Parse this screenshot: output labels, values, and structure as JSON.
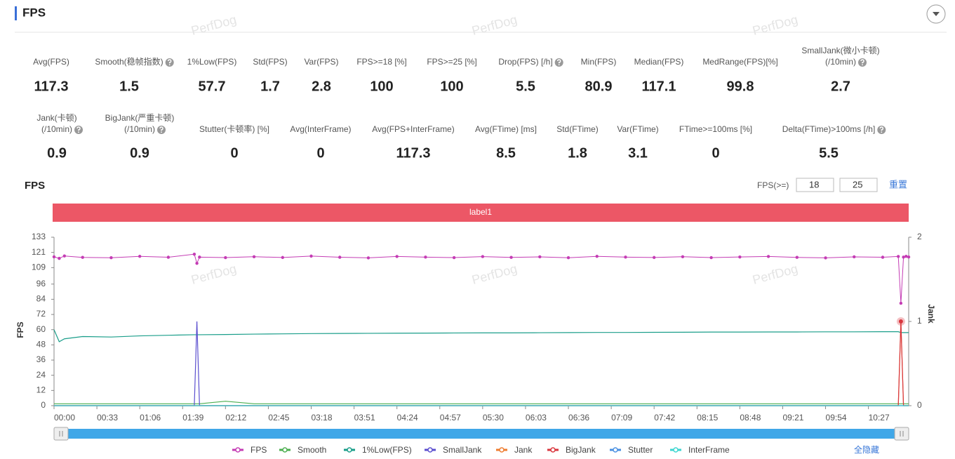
{
  "header": {
    "title": "FPS"
  },
  "watermark": "PerfDog",
  "stats": [
    [
      {
        "label": [
          "Avg(FPS)"
        ],
        "value": 117.3
      },
      {
        "label": [
          "Smooth(稳帧指数)"
        ],
        "value": 1.5,
        "help": true
      },
      {
        "label": [
          "1%Low(FPS)"
        ],
        "value": 57.7
      },
      {
        "label": [
          "Std(FPS)"
        ],
        "value": 1.7
      },
      {
        "label": [
          "Var(FPS)"
        ],
        "value": 2.8
      },
      {
        "label": [
          "FPS>=18 [%]"
        ],
        "value": 100
      },
      {
        "label": [
          "FPS>=25 [%]"
        ],
        "value": 100
      },
      {
        "label": [
          "Drop(FPS) [/h]"
        ],
        "value": 5.5,
        "help": true
      },
      {
        "label": [
          "Min(FPS)"
        ],
        "value": 80.9
      },
      {
        "label": [
          "Median(FPS)"
        ],
        "value": 117.1
      },
      {
        "label": [
          "MedRange(FPS)[%]"
        ],
        "value": 99.8
      },
      {
        "label": [
          "SmallJank(微小卡顿)",
          "(/10min)"
        ],
        "value": 2.7,
        "help": true
      }
    ],
    [
      {
        "label": [
          "Jank(卡顿)",
          "(/10min)"
        ],
        "value": 0.9,
        "help": true
      },
      {
        "label": [
          "BigJank(严重卡顿)",
          "(/10min)"
        ],
        "value": 0.9,
        "help": true
      },
      {
        "label": [
          "Stutter(卡顿率) [%]"
        ],
        "value": 0
      },
      {
        "label": [
          "Avg(InterFrame)"
        ],
        "value": 0
      },
      {
        "label": [
          "Avg(FPS+InterFrame)"
        ],
        "value": 117.3
      },
      {
        "label": [
          "Avg(FTime) [ms]"
        ],
        "value": 8.5
      },
      {
        "label": [
          "Std(FTime)"
        ],
        "value": 1.8
      },
      {
        "label": [
          "Var(FTime)"
        ],
        "value": 3.1
      },
      {
        "label": [
          "FTime>=100ms [%]"
        ],
        "value": 0
      },
      {
        "label": [
          "Delta(FTime)>100ms [/h]"
        ],
        "value": 5.5,
        "help": true
      }
    ]
  ],
  "controls": {
    "label": "FPS(>=)",
    "inputs": [
      18,
      25
    ],
    "reset": "重置",
    "hide_all": "全隐藏"
  },
  "chart_data": {
    "type": "line",
    "title": "FPS",
    "band_label": "label1",
    "band_color": "#ec5766",
    "ylabel": "FPS",
    "y2label": "Jank",
    "x": [
      0,
      4,
      8,
      22,
      44,
      66,
      88,
      108,
      110,
      112,
      132,
      154,
      176,
      198,
      220,
      242,
      264,
      286,
      308,
      330,
      352,
      374,
      396,
      418,
      440,
      462,
      484,
      506,
      528,
      550,
      572,
      594,
      616,
      638,
      650,
      652,
      654,
      656,
      658
    ],
    "xlim": [
      0,
      658
    ],
    "xticks": [
      {
        "value": 0,
        "label": "00:00"
      },
      {
        "value": 33,
        "label": "00:33"
      },
      {
        "value": 66,
        "label": "01:06"
      },
      {
        "value": 99,
        "label": "01:39"
      },
      {
        "value": 132,
        "label": "02:12"
      },
      {
        "value": 165,
        "label": "02:45"
      },
      {
        "value": 198,
        "label": "03:18"
      },
      {
        "value": 231,
        "label": "03:51"
      },
      {
        "value": 264,
        "label": "04:24"
      },
      {
        "value": 297,
        "label": "04:57"
      },
      {
        "value": 330,
        "label": "05:30"
      },
      {
        "value": 363,
        "label": "06:03"
      },
      {
        "value": 396,
        "label": "06:36"
      },
      {
        "value": 429,
        "label": "07:09"
      },
      {
        "value": 462,
        "label": "07:42"
      },
      {
        "value": 495,
        "label": "08:15"
      },
      {
        "value": 528,
        "label": "08:48"
      },
      {
        "value": 561,
        "label": "09:21"
      },
      {
        "value": 594,
        "label": "09:54"
      },
      {
        "value": 627,
        "label": "10:27"
      }
    ],
    "ylim": [
      0,
      133
    ],
    "yticks": [
      0,
      12,
      24,
      36,
      48,
      60,
      72,
      84,
      96,
      109,
      121,
      133
    ],
    "y2lim": [
      0,
      2
    ],
    "y2ticks": [
      0,
      1,
      2
    ],
    "series": [
      {
        "name": "FPS",
        "color": "#c43cb4",
        "markers": true,
        "values": [
          117.5,
          116.3,
          118.2,
          117.1,
          116.8,
          117.9,
          117.2,
          119.6,
          112.4,
          117.3,
          116.9,
          117.6,
          117.0,
          118.1,
          117.2,
          116.7,
          117.8,
          117.3,
          116.9,
          117.7,
          117.1,
          117.5,
          116.8,
          117.9,
          117.3,
          117.0,
          117.6,
          116.9,
          117.4,
          117.8,
          117.1,
          116.7,
          117.5,
          117.2,
          117.8,
          80.9,
          117.3,
          117.9,
          117.4
        ]
      },
      {
        "name": "Smooth",
        "color": "#4caf50",
        "values": [
          1.5,
          1.5,
          1.5,
          1.5,
          1.5,
          1.5,
          1.5,
          1.5,
          1.5,
          1.5,
          3.5,
          1.5,
          1.5,
          1.5,
          1.5,
          1.5,
          1.5,
          1.5,
          1.5,
          1.5,
          1.5,
          1.5,
          1.5,
          1.5,
          1.5,
          1.5,
          1.5,
          1.5,
          1.5,
          1.5,
          1.5,
          1.5,
          1.5,
          1.5,
          1.5,
          1.5,
          1.5,
          1.5,
          1.5
        ]
      },
      {
        "name": "1%Low(FPS)",
        "color": "#1a9e8a",
        "values": [
          60,
          50.5,
          52.8,
          54.6,
          54.2,
          55.1,
          55.6,
          56,
          56,
          56,
          56.2,
          56.5,
          56.7,
          56.9,
          57,
          57.1,
          57.2,
          57.3,
          57.4,
          57.5,
          57.5,
          57.6,
          57.7,
          57.8,
          57.8,
          57.9,
          58,
          58.1,
          58.1,
          58.2,
          58.2,
          58.3,
          58.3,
          58.4,
          58.4,
          57.7,
          57.7,
          57.7,
          57.7
        ]
      },
      {
        "name": "SmallJank",
        "color": "#5b4fcf",
        "axis": "y2",
        "values": [
          0,
          0,
          0,
          0,
          0,
          0,
          0,
          0,
          1,
          0,
          0,
          0,
          0,
          0,
          0,
          0,
          0,
          0,
          0,
          0,
          0,
          0,
          0,
          0,
          0,
          0,
          0,
          0,
          0,
          0,
          0,
          0,
          0,
          0,
          0,
          0,
          0,
          0,
          0
        ]
      },
      {
        "name": "Jank",
        "color": "#ee7d31",
        "axis": "y2",
        "values": [
          0,
          0,
          0,
          0,
          0,
          0,
          0,
          0,
          0,
          0,
          0,
          0,
          0,
          0,
          0,
          0,
          0,
          0,
          0,
          0,
          0,
          0,
          0,
          0,
          0,
          0,
          0,
          0,
          0,
          0,
          0,
          0,
          0,
          0,
          0,
          1,
          0,
          0,
          0
        ]
      },
      {
        "name": "BigJank",
        "color": "#d9363e",
        "axis": "y2",
        "markers_nonzero": true,
        "values": [
          0,
          0,
          0,
          0,
          0,
          0,
          0,
          0,
          0,
          0,
          0,
          0,
          0,
          0,
          0,
          0,
          0,
          0,
          0,
          0,
          0,
          0,
          0,
          0,
          0,
          0,
          0,
          0,
          0,
          0,
          0,
          0,
          0,
          0,
          0,
          1,
          0,
          0,
          0
        ]
      },
      {
        "name": "Stutter",
        "color": "#4a90e2",
        "axis": "y2",
        "values": [
          0,
          0,
          0,
          0,
          0,
          0,
          0,
          0,
          0,
          0,
          0,
          0,
          0,
          0,
          0,
          0,
          0,
          0,
          0,
          0,
          0,
          0,
          0,
          0,
          0,
          0,
          0,
          0,
          0,
          0,
          0,
          0,
          0,
          0,
          0,
          0,
          0,
          0,
          0
        ]
      },
      {
        "name": "InterFrame",
        "color": "#3dd6d0",
        "axis": "y2",
        "values": [
          0,
          0,
          0,
          0,
          0,
          0,
          0,
          0,
          0,
          0,
          0,
          0,
          0,
          0,
          0,
          0,
          0,
          0,
          0,
          0,
          0,
          0,
          0,
          0,
          0,
          0,
          0,
          0,
          0,
          0,
          0,
          0,
          0,
          0,
          0,
          0,
          0,
          0,
          0
        ]
      }
    ]
  }
}
